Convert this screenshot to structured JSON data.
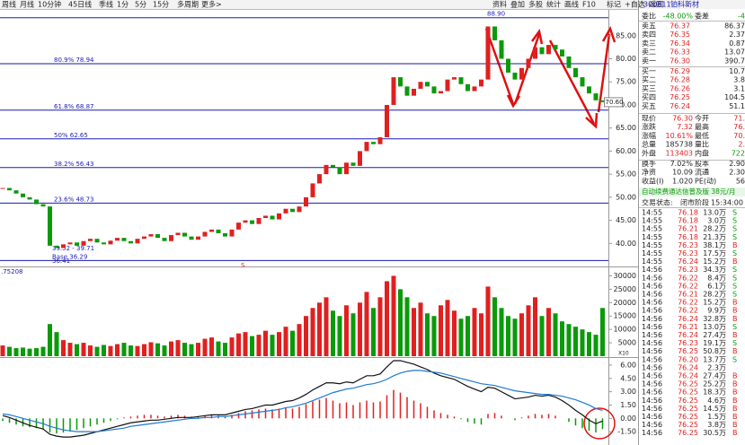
{
  "toolbar": {
    "left": [
      "周线",
      "月线",
      "10分钟",
      "45日线",
      "季线",
      "1分",
      "5分",
      "15分",
      "多周期",
      "更多>"
    ],
    "right": [
      "资料",
      "叠加",
      "多股",
      "统计",
      "画线",
      "F10",
      "标记",
      "+自选",
      "返回"
    ]
  },
  "price_chart": {
    "ylim": [
      35.2,
      90.4
    ],
    "yticks": [
      {
        "value": 85,
        "label": "85.00"
      },
      {
        "value": 80,
        "label": "80.00"
      },
      {
        "value": 75,
        "label": "75.00"
      },
      {
        "value": 70,
        "label": "70.00"
      },
      {
        "value": 65,
        "label": "65.00"
      },
      {
        "value": 60,
        "label": "60.00"
      },
      {
        "value": 55,
        "label": "55.00"
      },
      {
        "value": 50,
        "label": "50.00"
      },
      {
        "value": 45,
        "label": "45.00"
      },
      {
        "value": 40,
        "label": "40.00"
      }
    ],
    "levels": [
      {
        "value": 88.9,
        "label": "88.90"
      },
      {
        "value": 78.94,
        "label": "80.9% 78.94"
      },
      {
        "value": 68.87,
        "label": "61.8% 68.87"
      },
      {
        "value": 62.65,
        "label": "50% 62.65"
      },
      {
        "value": 56.43,
        "label": "38.2% 56.43"
      },
      {
        "value": 48.73,
        "label": "23.6% 48.73"
      },
      {
        "value": 36.29,
        "label": "Base 36.29"
      }
    ],
    "range_label": "39.52 - 39.71",
    "low_label": "36.41",
    "last_label": "70.60",
    "marker": "S",
    "closes": [
      52,
      51.5,
      50.8,
      50,
      49.5,
      48.5,
      48,
      39.5,
      39,
      39.8,
      40.2,
      39.5,
      40.5,
      41,
      40.2,
      39.8,
      40.6,
      41.2,
      40.5,
      40,
      41,
      41.5,
      42,
      41.2,
      40.5,
      41.8,
      42.3,
      41.5,
      40.8,
      41.5,
      42.5,
      43,
      42.2,
      41.5,
      43,
      44.5,
      45,
      44.2,
      45.5,
      46,
      45.2,
      46.5,
      47.5,
      46.8,
      48,
      50,
      53,
      55,
      57,
      56.5,
      55,
      57.5,
      56.8,
      60,
      62,
      61.5,
      63,
      70,
      76,
      74,
      72,
      73.5,
      75,
      74,
      72.5,
      73,
      75.5,
      76,
      74.5,
      73,
      74,
      75.5,
      87,
      84,
      80,
      77,
      75.5,
      78,
      80,
      82.5,
      81,
      83,
      82,
      80.5,
      78,
      76,
      74,
      72.5,
      71,
      70.6
    ]
  },
  "volume_chart": {
    "label": ".75208",
    "unit": "X10",
    "ylim": [
      0,
      32500
    ],
    "yticks": [
      5000,
      10000,
      15000,
      20000,
      25000,
      30000
    ],
    "values": [
      4000,
      3500,
      3000,
      3200,
      2800,
      3000,
      3500,
      12000,
      9000,
      6000,
      5000,
      4500,
      5000,
      4000,
      3500,
      4200,
      3800,
      4500,
      5000,
      4000,
      3800,
      4500,
      5200,
      4800,
      4000,
      5500,
      6000,
      5000,
      4500,
      5000,
      6500,
      7000,
      5500,
      5000,
      7000,
      8500,
      9000,
      7500,
      8000,
      9500,
      8000,
      9000,
      11000,
      9500,
      12000,
      15000,
      18000,
      20000,
      22000,
      17000,
      15000,
      19000,
      16000,
      20000,
      24000,
      18000,
      22000,
      28000,
      30000,
      25000,
      22000,
      18000,
      20000,
      16000,
      15000,
      19000,
      21000,
      17000,
      14000,
      15000,
      18000,
      16000,
      26000,
      22000,
      18000,
      15000,
      14000,
      16000,
      19000,
      22000,
      15000,
      18000,
      16000,
      13000,
      12000,
      11000,
      10000,
      9000,
      8000,
      18000
    ]
  },
  "macd_chart": {
    "ylim": [
      -3,
      6.7
    ],
    "yticks": [
      {
        "value": 6,
        "label": "6.00"
      },
      {
        "value": 4.5,
        "label": "4.50"
      },
      {
        "value": 3,
        "label": "3.00"
      },
      {
        "value": 1.5,
        "label": "1.50"
      },
      {
        "value": 0,
        "label": "0.00"
      },
      {
        "value": -1.5,
        "label": "-1.50"
      }
    ],
    "histogram": [
      -0.3,
      -0.5,
      -0.7,
      -0.9,
      -1.0,
      -1.1,
      -1.2,
      -1.6,
      -1.7,
      -1.6,
      -1.5,
      -1.3,
      -1.1,
      -0.9,
      -0.7,
      -0.5,
      -0.3,
      -0.1,
      0.1,
      0.2,
      0.3,
      0.4,
      0.4,
      0.3,
      0.2,
      0.3,
      0.4,
      0.3,
      0.2,
      0.2,
      0.3,
      0.4,
      0.3,
      0.2,
      0.4,
      0.6,
      0.8,
      0.9,
      1.0,
      1.1,
      1.0,
      1.1,
      1.2,
      1.1,
      1.3,
      1.6,
      1.9,
      2.1,
      2.3,
      2.0,
      1.7,
      1.8,
      1.5,
      1.8,
      2.0,
      1.8,
      1.9,
      2.6,
      3.2,
      2.9,
      2.4,
      2.0,
      1.7,
      1.3,
      0.9,
      0.6,
      0.4,
      0.2,
      -0.1,
      -0.4,
      -0.6,
      -0.7,
      0.5,
      0.6,
      0.3,
      0.0,
      -0.2,
      0.1,
      0.3,
      0.5,
      0.4,
      0.5,
      0.3,
      0.0,
      -0.4,
      -0.8,
      -1.1,
      -1.4,
      -1.6,
      -1.2
    ],
    "dif": [
      0.3,
      0.1,
      -0.2,
      -0.5,
      -0.8,
      -1.0,
      -1.2,
      -1.8,
      -2.0,
      -2.1,
      -2.1,
      -2.0,
      -1.9,
      -1.7,
      -1.5,
      -1.3,
      -1.1,
      -0.9,
      -0.7,
      -0.5,
      -0.4,
      -0.3,
      -0.2,
      -0.2,
      -0.1,
      0.0,
      0.1,
      0.1,
      0.1,
      0.2,
      0.3,
      0.4,
      0.4,
      0.4,
      0.6,
      0.8,
      1.0,
      1.1,
      1.3,
      1.5,
      1.5,
      1.7,
      1.9,
      2.0,
      2.3,
      2.7,
      3.2,
      3.6,
      4.0,
      4.0,
      3.9,
      4.1,
      4.0,
      4.4,
      4.8,
      4.8,
      5.0,
      5.8,
      6.5,
      6.5,
      6.3,
      6.1,
      5.8,
      5.5,
      5.1,
      4.8,
      4.6,
      4.4,
      4.0,
      3.6,
      3.3,
      3.0,
      3.5,
      3.4,
      3.0,
      2.6,
      2.2,
      2.3,
      2.4,
      2.6,
      2.5,
      2.6,
      2.4,
      2.0,
      1.5,
      0.9,
      0.4,
      -0.2,
      -0.6,
      -0.3
    ],
    "dea": [
      0.5,
      0.4,
      0.2,
      0.0,
      -0.2,
      -0.4,
      -0.6,
      -0.9,
      -1.1,
      -1.3,
      -1.4,
      -1.5,
      -1.5,
      -1.5,
      -1.5,
      -1.4,
      -1.3,
      -1.2,
      -1.1,
      -0.9,
      -0.8,
      -0.7,
      -0.6,
      -0.5,
      -0.4,
      -0.3,
      -0.2,
      -0.1,
      0.0,
      0.0,
      0.1,
      0.1,
      0.2,
      0.2,
      0.3,
      0.4,
      0.5,
      0.6,
      0.7,
      0.8,
      0.9,
      1.0,
      1.2,
      1.3,
      1.5,
      1.7,
      2.0,
      2.3,
      2.6,
      2.9,
      3.1,
      3.3,
      3.4,
      3.6,
      3.8,
      3.9,
      4.1,
      4.4,
      4.8,
      5.1,
      5.3,
      5.4,
      5.4,
      5.3,
      5.2,
      5.1,
      4.9,
      4.7,
      4.5,
      4.3,
      4.1,
      3.9,
      3.8,
      3.7,
      3.5,
      3.3,
      3.1,
      3.0,
      2.9,
      2.8,
      2.7,
      2.7,
      2.6,
      2.5,
      2.3,
      2.1,
      1.8,
      1.5,
      1.1,
      0.9
    ]
  },
  "quote": {
    "code": "300811",
    "name": "铂科新材",
    "ratio": [
      "委比",
      "-48.00%",
      "委差",
      "-4"
    ],
    "book": [
      [
        "卖五",
        "76.37",
        "86.37"
      ],
      [
        "卖四",
        "76.35",
        "2.37"
      ],
      [
        "卖三",
        "76.34",
        "0.87"
      ],
      [
        "卖二",
        "76.33",
        "13.07"
      ],
      [
        "卖一",
        "76.30",
        "390.7"
      ],
      [
        "买一",
        "76.29",
        "10.7"
      ],
      [
        "买二",
        "76.28",
        "3.8"
      ],
      [
        "买三",
        "76.26",
        "3.1"
      ],
      [
        "买四",
        "76.25",
        "104.5"
      ],
      [
        "买五",
        "76.24",
        "51.1"
      ]
    ],
    "stats": [
      [
        "现价",
        "76.30",
        "今开",
        "71."
      ],
      [
        "涨跌",
        "7.32",
        "最高",
        "76."
      ],
      [
        "涨幅",
        "10.61%",
        "最低",
        "70."
      ],
      [
        "总量",
        "185738",
        "量比",
        "2."
      ],
      [
        "外盘",
        "113403",
        "内盘",
        "722"
      ],
      [
        "换手",
        "7.02%",
        "股本",
        "2.90"
      ],
      [
        "净资",
        "10.09",
        "流通",
        "2.30"
      ],
      [
        "收益(I)",
        "1.020",
        "PE(动)",
        "56"
      ]
    ],
    "ad": "自动续费通达信普及版 38元/月",
    "status": [
      "交易状态:",
      "闭市阶段",
      "15:34:00"
    ],
    "trades": [
      [
        "14:55",
        "76.18",
        "13.0万",
        "S"
      ],
      [
        "14:55",
        "76.18",
        "3.0万",
        "S"
      ],
      [
        "14:55",
        "76.21",
        "28.2万",
        "S"
      ],
      [
        "14:55",
        "76.18",
        "21.3万",
        "S"
      ],
      [
        "14:55",
        "76.23",
        "38.1万",
        "B"
      ],
      [
        "14:55",
        "76.23",
        "17.5万",
        "S"
      ],
      [
        "14:55",
        "76.24",
        "15.2万",
        "B"
      ],
      [
        "14:56",
        "76.23",
        "34.3万",
        "S"
      ],
      [
        "14:56",
        "76.22",
        "8.4万",
        "S"
      ],
      [
        "14:56",
        "76.22",
        "6.1万",
        "S"
      ],
      [
        "14:56",
        "76.21",
        "28.2万",
        "S"
      ],
      [
        "14:56",
        "76.22",
        "15.2万",
        "B"
      ],
      [
        "14:56",
        "76.22",
        "9.9万",
        "B"
      ],
      [
        "14:56",
        "76.24",
        "32.8万",
        "B"
      ],
      [
        "14:56",
        "76.21",
        "13.0万",
        "S"
      ],
      [
        "14:56",
        "76.24",
        "27.4万",
        "B"
      ],
      [
        "14:56",
        "76.23",
        "19.1万",
        "S"
      ],
      [
        "14:56",
        "76.25",
        "50.8万",
        "B"
      ],
      [
        "14:56",
        "76.20",
        "13.7万",
        "S"
      ],
      [
        "14:56",
        "76.24",
        "2.3万"
      ],
      [
        "14:56",
        "76.24",
        "27.4万",
        "B"
      ],
      [
        "14:56",
        "76.25",
        "25.2万",
        "B"
      ],
      [
        "14:56",
        "76.25",
        "18.3万",
        "B"
      ],
      [
        "14:56",
        "76.25",
        "4.6万",
        "B"
      ],
      [
        "14:56",
        "76.25",
        "14.5万",
        "B"
      ],
      [
        "14:56",
        "76.25",
        "1.5万",
        "B"
      ],
      [
        "14:56",
        "76.25",
        "3.8万",
        "B"
      ],
      [
        "14:56",
        "76.25",
        "30.5万",
        "B"
      ]
    ]
  }
}
